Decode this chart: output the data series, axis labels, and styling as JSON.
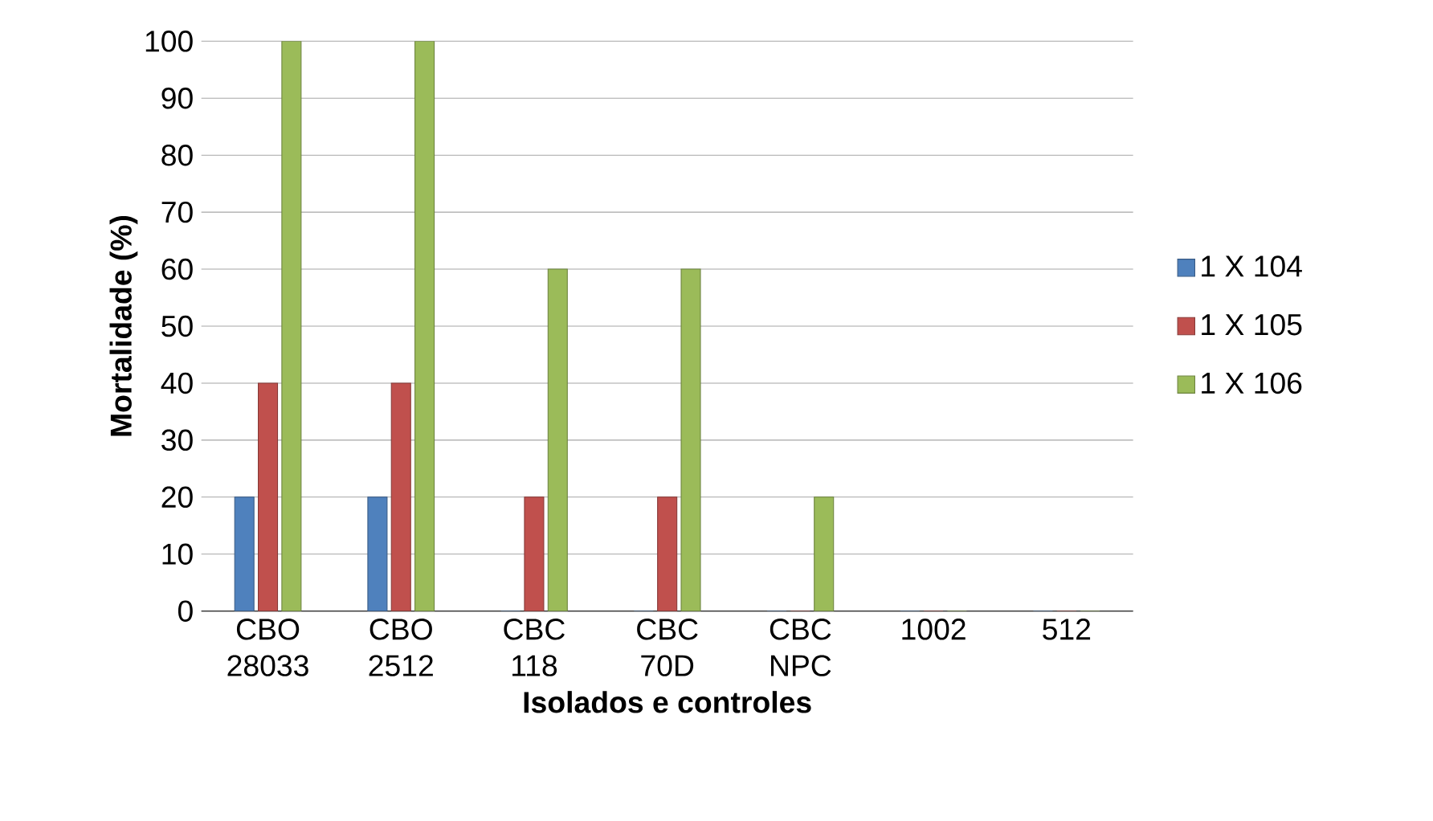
{
  "chart_data": {
    "type": "bar",
    "xlabel": "Isolados e controles",
    "ylabel": "Mortalidade (%)",
    "categories": [
      "CBO 28033",
      "CBO 2512",
      "CBC 118",
      "CBC 70D",
      "CBC NPC",
      "1002",
      "512"
    ],
    "series": [
      {
        "name": "1 X 104",
        "color": "#4f81bd",
        "values": [
          20,
          20,
          0,
          0,
          0,
          0,
          0
        ]
      },
      {
        "name": "1 X 105",
        "color": "#c0504d",
        "values": [
          40,
          40,
          20,
          20,
          0,
          0,
          0
        ]
      },
      {
        "name": "1 X 106",
        "color": "#9bbb59",
        "values": [
          100,
          100,
          60,
          60,
          20,
          0,
          0
        ]
      }
    ],
    "ylim": [
      0,
      100
    ],
    "yticks": [
      0,
      10,
      20,
      30,
      40,
      50,
      60,
      70,
      80,
      90,
      100
    ],
    "grid": "y",
    "legend": "right"
  }
}
